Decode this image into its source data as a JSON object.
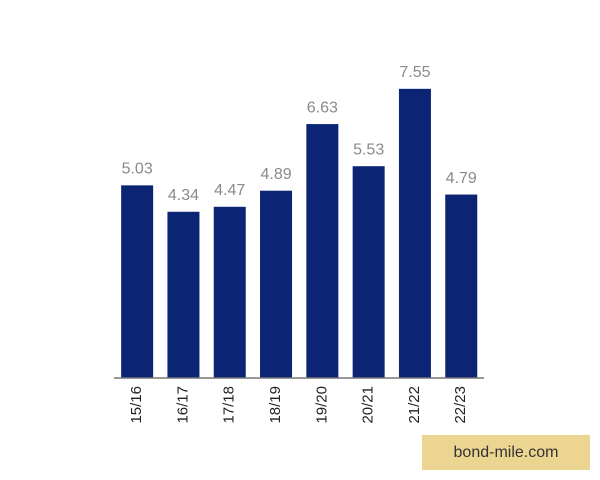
{
  "chart_data": {
    "type": "bar",
    "categories": [
      "15/16",
      "16/17",
      "17/18",
      "18/19",
      "19/20",
      "20/21",
      "21/22",
      "22/23"
    ],
    "values": [
      5.03,
      4.34,
      4.47,
      4.89,
      6.63,
      5.53,
      7.55,
      4.79
    ],
    "color": "#0b2474"
  },
  "watermark": "bond-mile.com"
}
